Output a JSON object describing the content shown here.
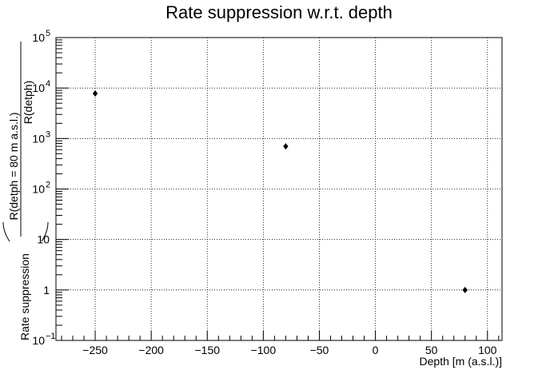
{
  "chart_data": {
    "type": "scatter",
    "title": "Rate suppression w.r.t. depth",
    "xlabel": "Depth [m (a.s.l.)]",
    "ylabel_prefix": "Rate suppression",
    "ylabel_numerator": "R(detph = 80 m a.s.l.)",
    "ylabel_denominator": "R(detph)",
    "xlim": [
      -285,
      113
    ],
    "ylim": [
      0.1,
      100000
    ],
    "yscale": "log",
    "grid": true,
    "x_ticks": [
      {
        "value": -250,
        "label": "−250"
      },
      {
        "value": -200,
        "label": "−200"
      },
      {
        "value": -150,
        "label": "−150"
      },
      {
        "value": -100,
        "label": "−100"
      },
      {
        "value": -50,
        "label": "−50"
      },
      {
        "value": 0,
        "label": "0"
      },
      {
        "value": 50,
        "label": "50"
      },
      {
        "value": 100,
        "label": "100"
      }
    ],
    "y_ticks": [
      {
        "value": 0.1,
        "base": "10",
        "exp": "−1"
      },
      {
        "value": 1,
        "base": "1",
        "exp": ""
      },
      {
        "value": 10,
        "base": "10",
        "exp": ""
      },
      {
        "value": 100,
        "base": "10",
        "exp": "2"
      },
      {
        "value": 1000,
        "base": "10",
        "exp": "3"
      },
      {
        "value": 10000,
        "base": "10",
        "exp": "4"
      },
      {
        "value": 100000,
        "base": "10",
        "exp": "5"
      }
    ],
    "points": [
      {
        "x": -250,
        "y": 7800
      },
      {
        "x": -80,
        "y": 700
      },
      {
        "x": 80,
        "y": 1
      }
    ],
    "marker_color": "#000000"
  }
}
